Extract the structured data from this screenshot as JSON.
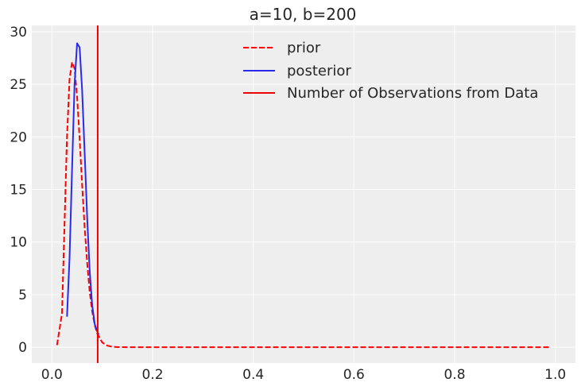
{
  "chart_data": {
    "type": "line",
    "title": "a=10, b=200",
    "xlabel": "",
    "ylabel": "",
    "xlim": [
      -0.04,
      1.04
    ],
    "ylim": [
      -1.5,
      30.6
    ],
    "xticks": [
      0.0,
      0.2,
      0.4,
      0.6,
      0.8,
      1.0
    ],
    "xtick_labels": [
      "0.0",
      "0.2",
      "0.4",
      "0.6",
      "0.8",
      "1.0"
    ],
    "yticks": [
      0,
      5,
      10,
      15,
      20,
      25,
      30
    ],
    "ytick_labels": [
      "0",
      "5",
      "10",
      "15",
      "20",
      "25",
      "30"
    ],
    "grid": true,
    "legend_position": "top-center",
    "background": "#eeeeee",
    "series": [
      {
        "name": "prior",
        "style": "dashed",
        "color": "#ff0000",
        "x": [
          0.01,
          0.02,
          0.03,
          0.035,
          0.04,
          0.045,
          0.05,
          0.055,
          0.06,
          0.065,
          0.07,
          0.075,
          0.08,
          0.085,
          0.09,
          0.1,
          0.11,
          0.12,
          0.13,
          0.15,
          0.2,
          0.3,
          0.5,
          0.7,
          0.9,
          0.99
        ],
        "y": [
          0.2,
          3.2,
          20.0,
          25.5,
          27.1,
          26.5,
          23.8,
          19.8,
          15.5,
          11.4,
          8.0,
          5.3,
          3.4,
          2.1,
          1.3,
          0.45,
          0.15,
          0.05,
          0.01,
          0.0,
          0.0,
          0.0,
          0.0,
          0.0,
          0.0,
          0.0
        ]
      },
      {
        "name": "posterior",
        "style": "solid",
        "color": "#2a2aef",
        "x": [
          0.03,
          0.035,
          0.04,
          0.045,
          0.05,
          0.055,
          0.06,
          0.065,
          0.07,
          0.075,
          0.08,
          0.085,
          0.09,
          0.093
        ],
        "y": [
          2.9,
          8.5,
          17.0,
          25.0,
          28.9,
          28.5,
          24.5,
          18.5,
          12.3,
          7.3,
          4.0,
          2.2,
          1.5,
          1.2
        ]
      }
    ],
    "vline": {
      "name": "Number of Observations from Data",
      "x": 0.0909,
      "color": "#ee0000"
    }
  }
}
